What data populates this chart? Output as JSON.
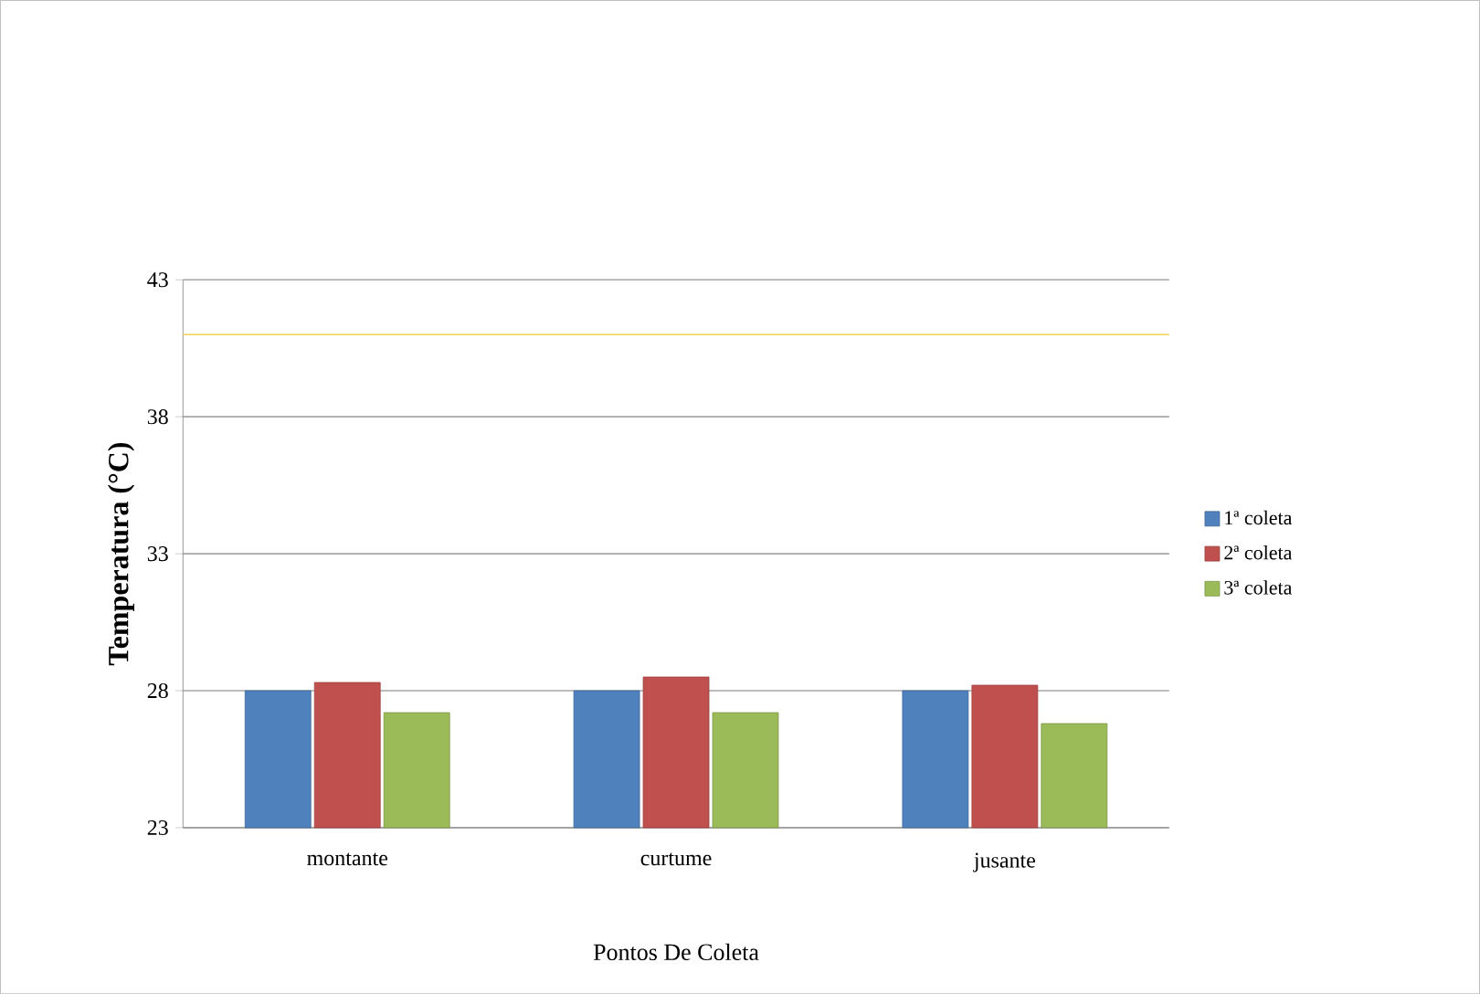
{
  "chart_data": {
    "type": "bar",
    "xlabel": "Pontos De Coleta",
    "ylabel": "Temperatura (°C)",
    "categories": [
      "montante",
      "curtume",
      "jusante"
    ],
    "series": [
      {
        "name": "1ª coleta",
        "color": "#4f81bd",
        "values": [
          28.0,
          28.0,
          28.0
        ]
      },
      {
        "name": "2ª coleta",
        "color": "#c0504d",
        "values": [
          28.3,
          28.5,
          28.2
        ]
      },
      {
        "name": "3ª coleta",
        "color": "#9bbb59",
        "values": [
          27.2,
          27.2,
          26.8
        ]
      }
    ],
    "ylim": [
      23,
      43
    ],
    "yticks": [
      23,
      28,
      33,
      38,
      43
    ],
    "grid": "y",
    "legend": "right",
    "ref_lines": [
      {
        "axis": "y",
        "value": 41,
        "color": "#f2d250"
      }
    ]
  }
}
